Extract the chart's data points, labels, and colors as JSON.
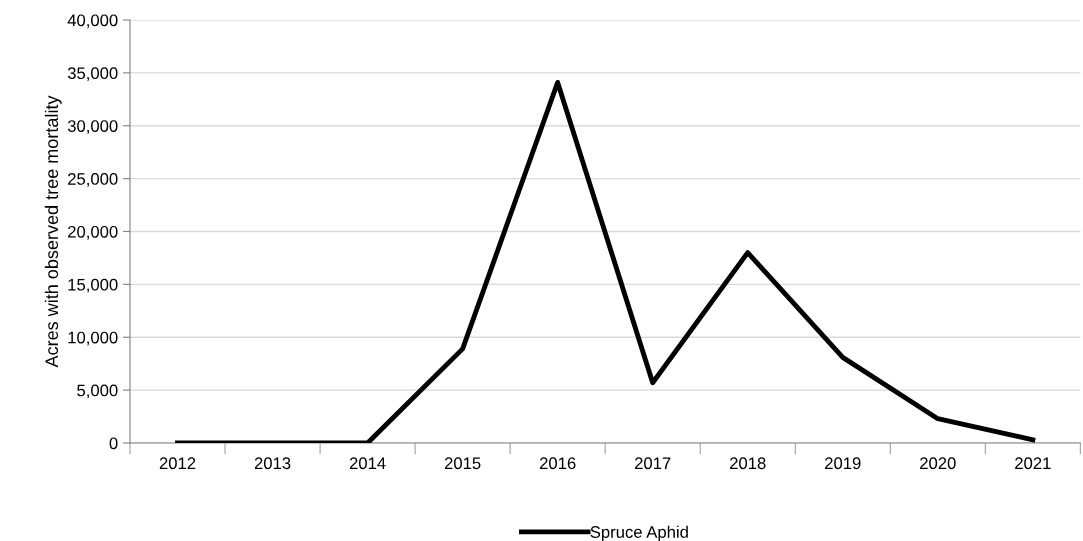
{
  "chart_data": {
    "type": "line",
    "ylabel": "Acres with observed tree mortality",
    "categories": [
      "2012",
      "2013",
      "2014",
      "2015",
      "2016",
      "2017",
      "2018",
      "2019",
      "2020",
      "2021"
    ],
    "series": [
      {
        "name": "Spruce Aphid",
        "color": "#000000",
        "values": [
          0,
          0,
          0,
          8900,
          34100,
          5700,
          18000,
          8100,
          2300,
          300
        ]
      }
    ],
    "ylim": [
      0,
      40000
    ],
    "yticks": [
      0,
      {
        "value": 5000,
        "label": "5,000"
      },
      {
        "value": 10000,
        "label": "10,000"
      },
      {
        "value": 15000,
        "label": "15,000"
      },
      {
        "value": 20000,
        "label": "20,000"
      },
      {
        "value": 25000,
        "label": "25,000"
      },
      {
        "value": 30000,
        "label": "30,000"
      },
      {
        "value": 35000,
        "label": "35,000"
      },
      {
        "value": 40000,
        "label": "40,000"
      }
    ],
    "grid": "y",
    "legend": "bottom",
    "marker": "none",
    "line_style": "solid"
  }
}
